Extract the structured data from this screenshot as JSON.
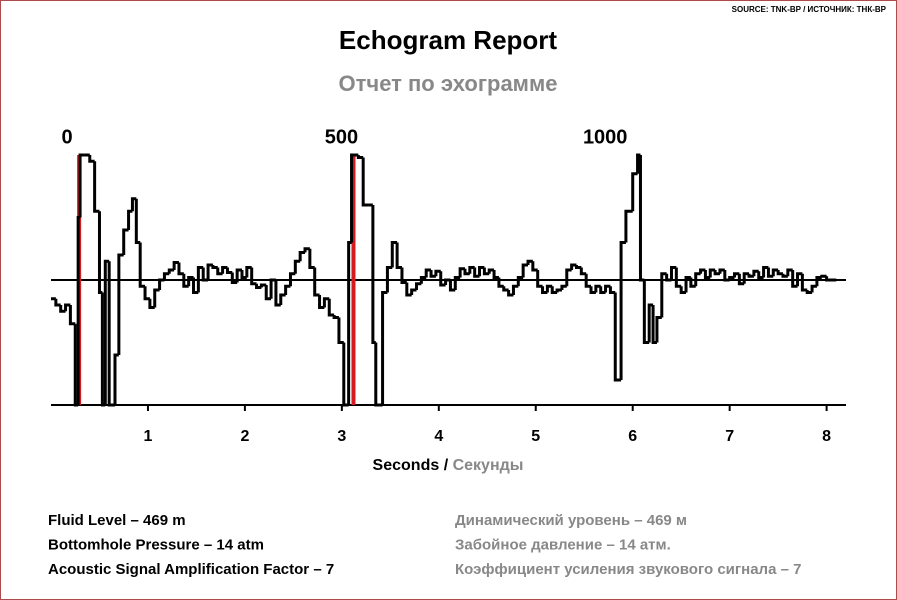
{
  "chart_data": {
    "type": "step",
    "title": "Echogram Report",
    "subtitle": "Отчет по эхограмме",
    "source": "SOURCE: TNK-BP / ИСТОЧНИК: ТНК-BP",
    "xlabel": {
      "en": "Seconds",
      "sep": "/",
      "ru": "Секунды"
    },
    "xlim": [
      0,
      8.2
    ],
    "xticks": [
      1,
      2,
      3,
      4,
      5,
      6,
      7,
      8
    ],
    "ylim": [
      -1,
      1
    ],
    "color": "#000000",
    "marker_color": "#d71920",
    "depth_labels": [
      {
        "value": 0.29,
        "label": "0"
      },
      {
        "value": 3.12,
        "label": "500"
      },
      {
        "value": 5.84,
        "label": "1000"
      }
    ],
    "red_lines": [
      0.29,
      3.12
    ],
    "x": [
      0.0,
      0.05,
      0.1,
      0.15,
      0.2,
      0.25,
      0.28,
      0.3,
      0.35,
      0.4,
      0.45,
      0.5,
      0.53,
      0.56,
      0.6,
      0.66,
      0.7,
      0.75,
      0.8,
      0.84,
      0.88,
      0.92,
      0.97,
      1.02,
      1.07,
      1.12,
      1.17,
      1.22,
      1.27,
      1.32,
      1.37,
      1.42,
      1.47,
      1.52,
      1.57,
      1.62,
      1.67,
      1.72,
      1.77,
      1.82,
      1.87,
      1.92,
      1.97,
      2.02,
      2.07,
      2.12,
      2.17,
      2.22,
      2.27,
      2.32,
      2.37,
      2.42,
      2.47,
      2.52,
      2.57,
      2.62,
      2.67,
      2.72,
      2.77,
      2.82,
      2.87,
      2.92,
      2.97,
      3.02,
      3.07,
      3.1,
      3.17,
      3.22,
      3.27,
      3.32,
      3.35,
      3.42,
      3.47,
      3.52,
      3.57,
      3.62,
      3.67,
      3.72,
      3.77,
      3.82,
      3.87,
      3.92,
      3.97,
      4.02,
      4.07,
      4.12,
      4.17,
      4.22,
      4.27,
      4.32,
      4.37,
      4.42,
      4.47,
      4.52,
      4.57,
      4.62,
      4.67,
      4.72,
      4.77,
      4.82,
      4.87,
      4.92,
      4.97,
      5.02,
      5.07,
      5.12,
      5.17,
      5.22,
      5.27,
      5.32,
      5.37,
      5.42,
      5.47,
      5.52,
      5.57,
      5.62,
      5.67,
      5.72,
      5.77,
      5.82,
      5.88,
      5.93,
      6.0,
      6.05,
      6.08,
      6.12,
      6.17,
      6.21,
      6.25,
      6.3,
      6.35,
      6.4,
      6.45,
      6.5,
      6.55,
      6.6,
      6.65,
      6.7,
      6.75,
      6.8,
      6.85,
      6.9,
      6.95,
      7.0,
      7.05,
      7.1,
      7.15,
      7.2,
      7.25,
      7.3,
      7.35,
      7.4,
      7.45,
      7.5,
      7.55,
      7.6,
      7.65,
      7.7,
      7.75,
      7.8,
      7.85,
      7.9,
      7.95,
      8.0,
      8.1
    ],
    "values": [
      -0.15,
      -0.2,
      -0.25,
      -0.2,
      -0.35,
      -1.0,
      0.5,
      1.0,
      1.0,
      0.95,
      0.55,
      -0.1,
      -1.0,
      0.15,
      -1.0,
      -0.6,
      0.2,
      0.4,
      0.55,
      0.65,
      0.3,
      -0.05,
      -0.15,
      -0.22,
      -0.08,
      0.0,
      0.05,
      0.08,
      0.14,
      0.05,
      -0.05,
      0.02,
      -0.1,
      0.1,
      0.0,
      0.12,
      0.1,
      0.05,
      0.1,
      0.06,
      -0.02,
      0.08,
      0.02,
      0.1,
      -0.03,
      -0.06,
      -0.04,
      -0.15,
      0.0,
      -0.2,
      -0.12,
      -0.05,
      0.05,
      0.15,
      0.22,
      0.25,
      0.1,
      -0.12,
      -0.22,
      -0.15,
      -0.28,
      -0.3,
      -0.5,
      -1.0,
      0.3,
      1.0,
      0.98,
      0.6,
      0.6,
      -0.5,
      -1.0,
      -0.1,
      0.1,
      0.3,
      0.1,
      -0.02,
      -0.12,
      -0.08,
      -0.03,
      0.02,
      0.08,
      0.03,
      0.07,
      -0.04,
      0.0,
      -0.08,
      0.02,
      0.09,
      0.05,
      0.1,
      0.03,
      0.1,
      0.05,
      0.08,
      0.02,
      -0.05,
      -0.08,
      -0.12,
      -0.05,
      0.02,
      0.12,
      0.15,
      0.08,
      -0.05,
      -0.1,
      -0.05,
      -0.1,
      -0.08,
      -0.05,
      0.08,
      0.12,
      0.1,
      0.05,
      -0.05,
      -0.1,
      -0.05,
      -0.1,
      -0.05,
      -0.1,
      -0.8,
      0.3,
      0.55,
      0.85,
      1.0,
      0.0,
      -0.5,
      -0.2,
      -0.5,
      -0.3,
      0.05,
      0.0,
      0.1,
      -0.05,
      -0.1,
      0.02,
      -0.05,
      0.05,
      0.08,
      0.02,
      0.08,
      0.05,
      0.08,
      0.0,
      0.02,
      0.05,
      -0.03,
      0.05,
      0.03,
      0.07,
      0.02,
      0.1,
      0.03,
      0.08,
      0.05,
      0.03,
      0.08,
      -0.05,
      0.05,
      -0.08,
      -0.1,
      -0.05,
      0.02,
      0.03,
      0.0,
      0.0
    ]
  },
  "footer": {
    "en": [
      "Fluid Level – 469 m",
      "Bottomhole Pressure – 14 atm",
      "Acoustic Signal Amplification Factor – 7"
    ],
    "ru": [
      "Динамический уровень – 469 м",
      "Забойное давление – 14 атм.",
      "Коэффициент усиления звукового сигнала – 7"
    ]
  }
}
